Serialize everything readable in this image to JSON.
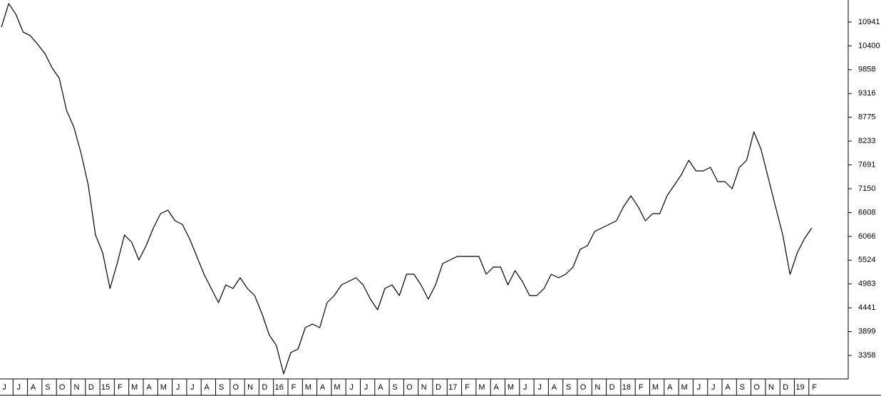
{
  "chart_data": {
    "type": "line",
    "color": "#000000",
    "categories": [
      "J",
      null,
      "J",
      null,
      "A",
      null,
      "S",
      null,
      "O",
      null,
      "N",
      null,
      "D",
      null,
      "15",
      null,
      "F",
      null,
      "M",
      null,
      "A",
      null,
      "M",
      null,
      "J",
      null,
      "J",
      null,
      "A",
      null,
      "S",
      null,
      "O",
      null,
      "N",
      null,
      "D",
      null,
      "16",
      null,
      "F",
      null,
      "M",
      null,
      "A",
      null,
      "M",
      null,
      "J",
      null,
      "J",
      null,
      "A",
      null,
      "S",
      null,
      "O",
      null,
      "N",
      null,
      "D",
      null,
      "17",
      null,
      "F",
      null,
      "M",
      null,
      "A",
      null,
      "M",
      null,
      "J",
      null,
      "J",
      null,
      "A",
      null,
      "S",
      null,
      "O",
      null,
      "N",
      null,
      "D",
      null,
      "18",
      null,
      "F",
      null,
      "M",
      null,
      "A",
      null,
      "M",
      null,
      "J",
      null,
      "J",
      null,
      "A",
      null,
      "S",
      null,
      "O",
      null,
      "N",
      null,
      "D",
      null,
      "19",
      null,
      "F",
      null
    ],
    "values": [
      10826,
      11361,
      11118,
      10713,
      10632,
      10437,
      10227,
      9902,
      9660,
      8930,
      8558,
      7959,
      7230,
      6096,
      5691,
      4881,
      5448,
      6096,
      5934,
      5529,
      5853,
      6258,
      6582,
      6663,
      6420,
      6339,
      6015,
      5610,
      5205,
      4881,
      4557,
      4962,
      4881,
      5124,
      4881,
      4719,
      4314,
      3828,
      3585,
      2937,
      3423,
      3504,
      3990,
      4071,
      3990,
      4557,
      4719,
      4962,
      5043,
      5124,
      4962,
      4638,
      4395,
      4881,
      4962,
      4719,
      5205,
      5205,
      4962,
      4638,
      4962,
      5448,
      5529,
      5610,
      5610,
      5610,
      5610,
      5205,
      5367,
      5367,
      4962,
      5286,
      5043,
      4719,
      4719,
      4881,
      5205,
      5124,
      5205,
      5367,
      5772,
      5853,
      6177,
      6258,
      6339,
      6420,
      6744,
      6987,
      6744,
      6420,
      6582,
      6582,
      6987,
      7230,
      7473,
      7797,
      7554,
      7554,
      7635,
      7311,
      7311,
      7149,
      7635,
      7797,
      8445,
      8040,
      7392,
      6744,
      6096,
      5200,
      5691,
      6015,
      6258,
      null
    ],
    "ylim": [
      2823,
      11443
    ],
    "yticks": [
      3358,
      3899,
      4441,
      4983,
      5524,
      6066,
      6608,
      7150,
      7691,
      8233,
      8775,
      9316,
      9858,
      10400,
      10941
    ]
  }
}
